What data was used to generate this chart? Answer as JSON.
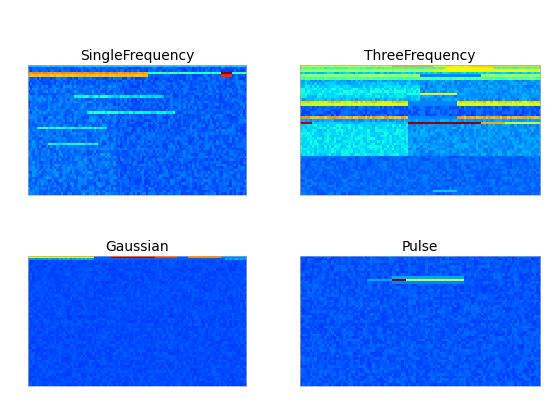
{
  "titles": [
    "SingleFrequency",
    "ThreeFrequency",
    "Gaussian",
    "Pulse"
  ],
  "cmap": "jet",
  "bg_color": "white",
  "fig_size": [
    5.6,
    4.2
  ],
  "dpi": 100,
  "positions": {
    "SingleFrequency": [
      0.05,
      0.535,
      0.39,
      0.31
    ],
    "ThreeFrequency": [
      0.535,
      0.535,
      0.43,
      0.31
    ],
    "Gaussian": [
      0.05,
      0.08,
      0.39,
      0.31
    ],
    "Pulse": [
      0.535,
      0.08,
      0.43,
      0.31
    ]
  },
  "vmin": 0.0,
  "vmax": 0.55
}
